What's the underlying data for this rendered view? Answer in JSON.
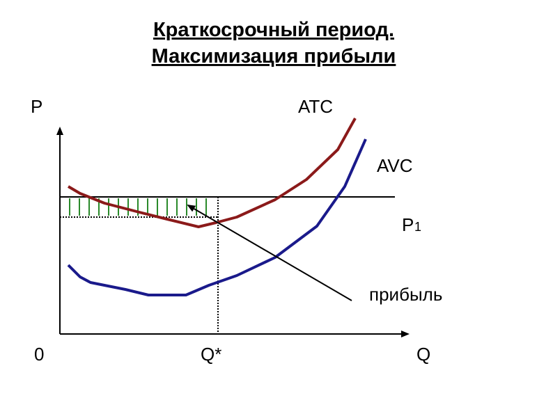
{
  "title": {
    "line1": "Краткосрочный период.",
    "line2": "Максимизация прибыли"
  },
  "axes": {
    "y_label": "P",
    "x_label": "Q",
    "origin": "0",
    "q_star": "Q*"
  },
  "curves": {
    "atc": "ATC",
    "avc": "AVC"
  },
  "price_line": {
    "label": "P",
    "subscript": "1"
  },
  "annotation": "прибыль"
}
